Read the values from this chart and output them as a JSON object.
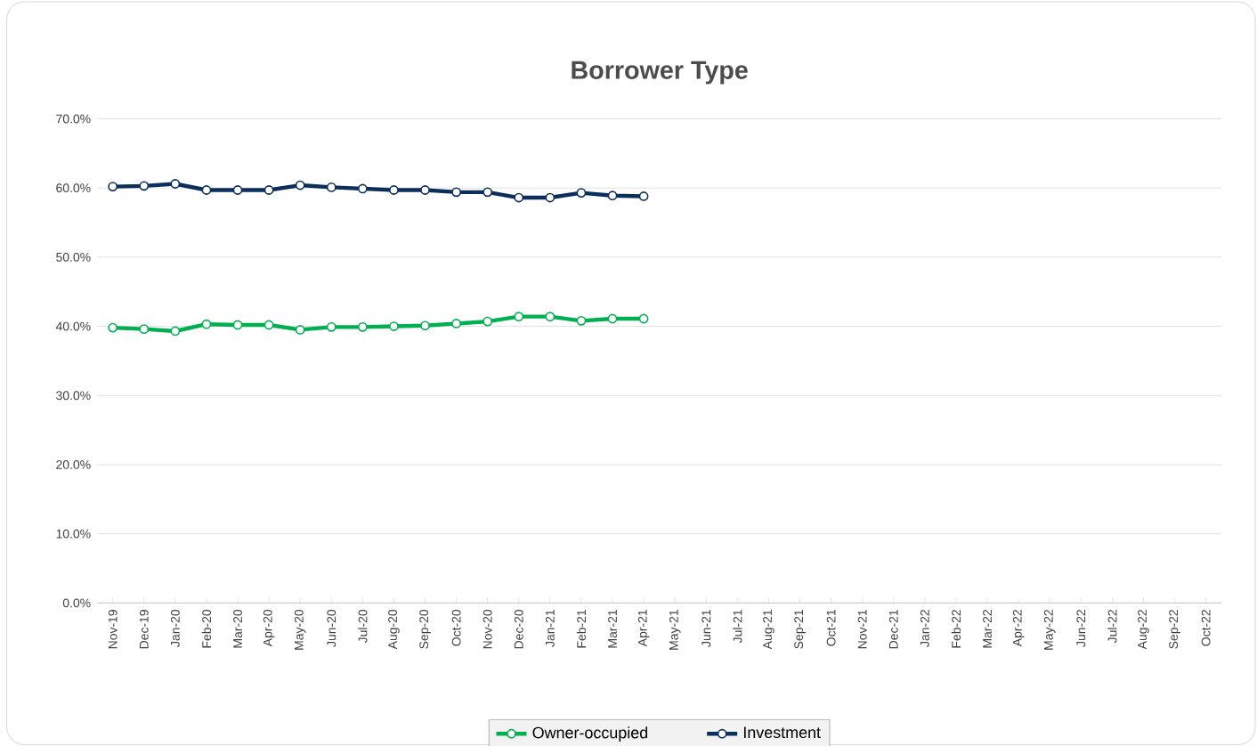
{
  "chart_data": {
    "type": "line",
    "title": "Borrower Type",
    "categories": [
      "Nov-19",
      "Dec-19",
      "Jan-20",
      "Feb-20",
      "Mar-20",
      "Apr-20",
      "May-20",
      "Jun-20",
      "Jul-20",
      "Aug-20",
      "Sep-20",
      "Oct-20",
      "Nov-20",
      "Dec-20",
      "Jan-21",
      "Feb-21",
      "Mar-21",
      "Apr-21",
      "May-21",
      "Jun-21",
      "Jul-21",
      "Aug-21",
      "Sep-21",
      "Oct-21",
      "Nov-21",
      "Dec-21",
      "Jan-22",
      "Feb-22",
      "Mar-22",
      "Apr-22",
      "May-22",
      "Jun-22",
      "Jul-22",
      "Aug-22",
      "Sep-22",
      "Oct-22"
    ],
    "series": [
      {
        "name": "Owner-occupied",
        "color": "#00b050",
        "values": [
          39.8,
          39.6,
          39.3,
          40.3,
          40.2,
          40.2,
          39.5,
          39.9,
          39.9,
          40.0,
          40.1,
          40.4,
          40.7,
          41.4,
          41.4,
          40.8,
          41.1,
          41.1,
          null,
          null,
          null,
          null,
          null,
          null,
          null,
          null,
          null,
          null,
          null,
          null,
          null,
          null,
          null,
          null,
          null,
          null
        ]
      },
      {
        "name": "Investment",
        "color": "#0b2f5a",
        "values": [
          60.2,
          60.3,
          60.6,
          59.7,
          59.7,
          59.7,
          60.4,
          60.1,
          59.9,
          59.7,
          59.7,
          59.4,
          59.4,
          58.6,
          58.6,
          59.3,
          58.9,
          58.8,
          null,
          null,
          null,
          null,
          null,
          null,
          null,
          null,
          null,
          null,
          null,
          null,
          null,
          null,
          null,
          null,
          null,
          null
        ]
      }
    ],
    "ylim": [
      0,
      70
    ],
    "yticks": [
      {
        "value": 0,
        "label": "0.0%"
      },
      {
        "value": 10,
        "label": "10.0%"
      },
      {
        "value": 20,
        "label": "20.0%"
      },
      {
        "value": 30,
        "label": "30.0%"
      },
      {
        "value": 40,
        "label": "40.0%"
      },
      {
        "value": 50,
        "label": "50.0%"
      },
      {
        "value": 60,
        "label": "60.0%"
      },
      {
        "value": 70,
        "label": "70.0%"
      }
    ],
    "grid": "y",
    "legend": "bottom",
    "marker": "circle",
    "line_style": "solid"
  }
}
